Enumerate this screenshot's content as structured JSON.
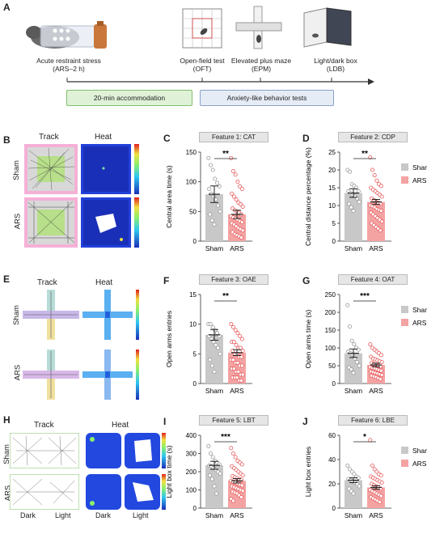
{
  "panelA": {
    "letter": "A",
    "steps": [
      {
        "label": "Acute restraint stress\n(ARS–2 h)"
      },
      {
        "label": "Open-field test\n(OFT)"
      },
      {
        "label": "Elevated plus maze\n(EPM)"
      },
      {
        "label": "Light/dark box\n(LDB)"
      }
    ],
    "accommodation": "20-min accommodation",
    "tests": "Anxiety-like behavior tests"
  },
  "panelB": {
    "letter": "B",
    "track": "Track",
    "heat": "Heat",
    "rows": [
      "Sham",
      "ARS"
    ]
  },
  "panelE": {
    "letter": "E",
    "track": "Track",
    "heat": "Heat",
    "rows": [
      "Sham",
      "ARS"
    ]
  },
  "panelH": {
    "letter": "H",
    "track": "Track",
    "heat": "Heat",
    "rows": [
      "Sham",
      "ARS"
    ],
    "dark": "Dark",
    "light": "Light"
  },
  "colors": {
    "sham": "#c8c8c8",
    "ars": "#f4a3a3",
    "sham_dot": "#999999",
    "ars_dot": "#e8585a",
    "accommodation_bg": "#dff2d8",
    "tests_bg": "#e6ecf6"
  },
  "chart_data": [
    {
      "letter": "C",
      "type": "bar",
      "title": "Feature 1: CAT",
      "ylabel": "Central area time (s)",
      "categories": [
        "Sham",
        "ARS"
      ],
      "values": [
        79,
        45
      ],
      "sem": [
        14,
        7
      ],
      "ylim": [
        0,
        150
      ],
      "yticks": [
        0,
        50,
        100,
        150
      ],
      "sig": "**",
      "points": [
        [
          140,
          128,
          120,
          105,
          98,
          92,
          88,
          80,
          75,
          70,
          60,
          50,
          45,
          35,
          28
        ],
        [
          140,
          118,
          112,
          100,
          92,
          88,
          80,
          75,
          70,
          65,
          62,
          58,
          55,
          52,
          50,
          48,
          45,
          42,
          40,
          38,
          36,
          34,
          32,
          30,
          28,
          25,
          22,
          20,
          18,
          15,
          12,
          10,
          8,
          6
        ]
      ],
      "legend": null
    },
    {
      "letter": "D",
      "type": "bar",
      "title": "Feature 2: CDP",
      "ylabel": "Central distance percentage (%)",
      "categories": [
        "Sham",
        "ARS"
      ],
      "values": [
        13.5,
        11
      ],
      "sem": [
        1.2,
        0.7
      ],
      "ylim": [
        0,
        25
      ],
      "yticks": [
        0,
        5,
        10,
        15,
        20,
        25
      ],
      "sig": "**",
      "points": [
        [
          20,
          19.5,
          16,
          15.5,
          15,
          14,
          14,
          13.5,
          13,
          12.5,
          12,
          11,
          10.5,
          9.5,
          8.5
        ],
        [
          23.5,
          20,
          18.5,
          17,
          16,
          15.5,
          15,
          14.5,
          14,
          13.5,
          13,
          12.5,
          12,
          11.5,
          11,
          10.8,
          10.5,
          10,
          9.8,
          9.5,
          9,
          8.8,
          8.5,
          8,
          7.5,
          7,
          6.5,
          6,
          5.5,
          5,
          4.5,
          4,
          3.5,
          3
        ]
      ],
      "legend": [
        "Sham",
        "ARS"
      ]
    },
    {
      "letter": "F",
      "type": "bar",
      "title": "Feature 3: OAE",
      "ylabel": "Open arms entries",
      "categories": [
        "Sham",
        "ARS"
      ],
      "values": [
        8.2,
        5.2
      ],
      "sem": [
        0.9,
        0.5
      ],
      "ylim": [
        0,
        15
      ],
      "yticks": [
        0,
        5,
        10,
        15
      ],
      "sig": "**",
      "points": [
        [
          10,
          10,
          9.5,
          9,
          8.5,
          8,
          8,
          7.5,
          7,
          6.5,
          6,
          5,
          4,
          3,
          2
        ],
        [
          10,
          9.5,
          9,
          8.5,
          8,
          7.5,
          7,
          7,
          6.5,
          6,
          6,
          5.5,
          5.5,
          5,
          5,
          4.5,
          4.5,
          4,
          4,
          3.5,
          3.5,
          3,
          3,
          2.5,
          2.5,
          2,
          2,
          1.5,
          1.5,
          1,
          1,
          1,
          0.5,
          0.5
        ]
      ],
      "legend": null
    },
    {
      "letter": "G",
      "type": "bar",
      "title": "Feature 4: OAT",
      "ylabel": "Open arms time (s)",
      "categories": [
        "Sham",
        "ARS"
      ],
      "values": [
        85,
        52
      ],
      "sem": [
        12,
        5
      ],
      "ylim": [
        0,
        250
      ],
      "yticks": [
        0,
        50,
        100,
        150,
        200,
        250
      ],
      "sig": "***",
      "points": [
        [
          220,
          160,
          120,
          110,
          100,
          95,
          90,
          85,
          80,
          70,
          60,
          50,
          45,
          40,
          30
        ],
        [
          110,
          100,
          95,
          90,
          85,
          80,
          75,
          70,
          68,
          65,
          62,
          60,
          58,
          55,
          52,
          50,
          48,
          46,
          44,
          42,
          40,
          38,
          36,
          34,
          32,
          30,
          28,
          26,
          24,
          22,
          20,
          18,
          15,
          12
        ]
      ],
      "legend": [
        "Sham",
        "ARS"
      ]
    },
    {
      "letter": "I",
      "type": "bar",
      "title": "Feature 5: LBT",
      "ylabel": "Light box time (s)",
      "categories": [
        "Sham",
        "ARS"
      ],
      "values": [
        235,
        150
      ],
      "sem": [
        22,
        12
      ],
      "ylim": [
        0,
        400
      ],
      "yticks": [
        0,
        100,
        200,
        300,
        400
      ],
      "sig": "***",
      "points": [
        [
          340,
          300,
          280,
          260,
          250,
          240,
          235,
          230,
          220,
          210,
          200,
          190,
          180,
          160,
          120,
          80
        ],
        [
          330,
          300,
          280,
          260,
          250,
          240,
          230,
          220,
          210,
          200,
          190,
          180,
          175,
          170,
          165,
          160,
          155,
          150,
          145,
          140,
          135,
          130,
          125,
          120,
          115,
          110,
          105,
          100,
          95,
          90,
          85,
          80,
          70,
          60,
          50,
          40
        ]
      ],
      "legend": null
    },
    {
      "letter": "J",
      "type": "bar",
      "title": "Feature 6: LBE",
      "ylabel": "Light box entries",
      "categories": [
        "Sham",
        "ARS"
      ],
      "values": [
        23,
        17
      ],
      "sem": [
        2,
        1.5
      ],
      "ylim": [
        0,
        60
      ],
      "yticks": [
        0,
        20,
        40,
        60
      ],
      "sig": "*",
      "points": [
        [
          35,
          32,
          30,
          28,
          26,
          25,
          24,
          23,
          22,
          21,
          20,
          18,
          16,
          14,
          12
        ],
        [
          56,
          35,
          32,
          30,
          28,
          27,
          26,
          25,
          24,
          23,
          22,
          21,
          20,
          19,
          18,
          17,
          16,
          15,
          14,
          13,
          12,
          11,
          10,
          9,
          8,
          7,
          6,
          5
        ]
      ],
      "legend": [
        "Sham",
        "ARS"
      ]
    }
  ]
}
